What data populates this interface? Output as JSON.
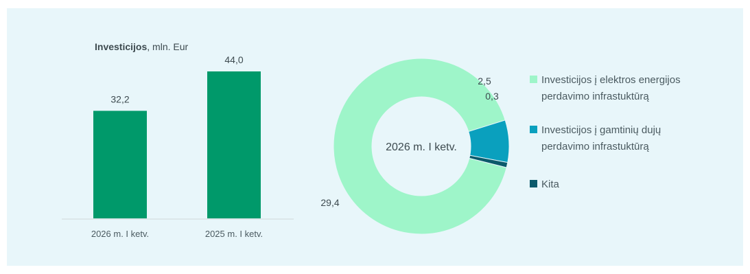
{
  "chart_data": [
    {
      "type": "bar",
      "title_bold": "Investicijos",
      "title_rest": ", mln. Eur",
      "categories": [
        "2026 m. I ketv.",
        "2025 m. I ketv."
      ],
      "values": [
        32.2,
        44.0
      ],
      "value_labels": [
        "32,2",
        "44,0"
      ],
      "ylim": [
        0,
        44.0
      ],
      "color": "#00996a",
      "grid": false
    },
    {
      "type": "pie",
      "variant": "donut",
      "center_label": "2026 m. I ketv.",
      "slices": [
        {
          "name": "Investicijos į elektros energijos perdavimo infrastuktūrą",
          "value": 29.4,
          "label": "29,4",
          "color": "#9ef5c9"
        },
        {
          "name": "Investicijos į gamtinių dujų perdavimo infrastuktūrą",
          "value": 2.5,
          "label": "2,5",
          "color": "#0aa0be"
        },
        {
          "name": "Kita",
          "value": 0.3,
          "label": "0,3",
          "color": "#0b5a6b"
        }
      ],
      "legend_position": "right"
    }
  ],
  "legend": {
    "items": [
      {
        "line1": "Investicijos į elektros energijos",
        "line2": "perdavimo infrastuktūrą",
        "color": "#9ef5c9"
      },
      {
        "line1": "Investicijos į gamtinių dujų",
        "line2": "perdavimo infrastuktūrą",
        "color": "#0aa0be"
      },
      {
        "line1": "Kita",
        "line2": "",
        "color": "#0b5a6b"
      }
    ]
  }
}
